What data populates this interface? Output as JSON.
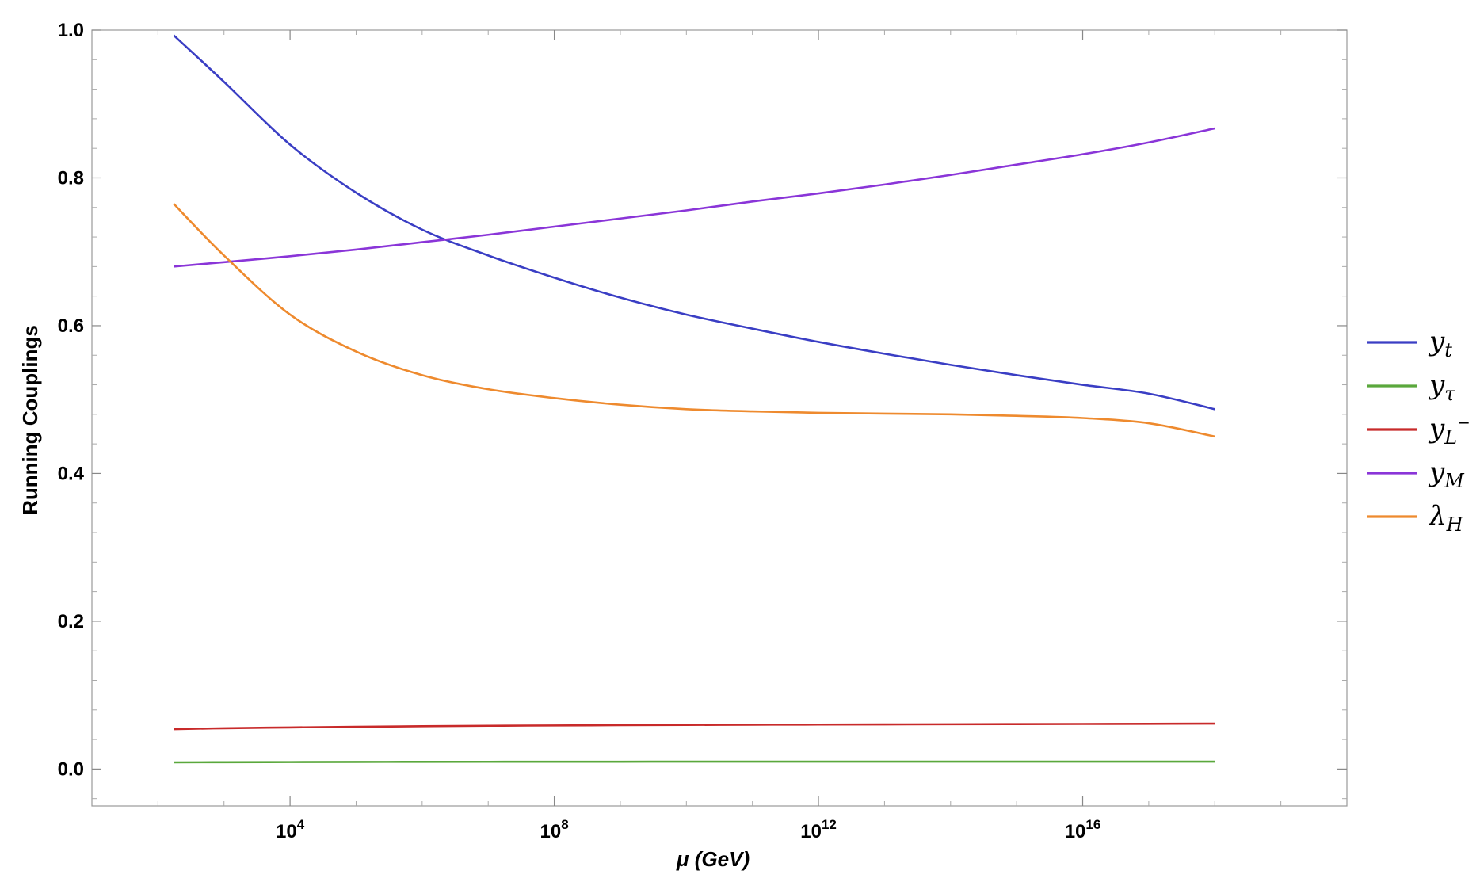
{
  "chart_data": {
    "type": "line",
    "xlabel": "μ (GeV)",
    "ylabel": "Running Couplings",
    "x_scale": "log10",
    "xlim": [
      10,
      1e+20
    ],
    "ylim": [
      -0.05,
      1.0
    ],
    "x_ticks": [
      {
        "value": 10000,
        "base": "10",
        "exp": "4"
      },
      {
        "value": 100000000,
        "base": "10",
        "exp": "8"
      },
      {
        "value": 1000000000000,
        "base": "10",
        "exp": "12"
      },
      {
        "value": 10000000000000000,
        "base": "10",
        "exp": "16"
      }
    ],
    "y_ticks": [
      "0.0",
      "0.2",
      "0.4",
      "0.6",
      "0.8",
      "1.0"
    ],
    "legend_position": "right",
    "x": [
      173,
      1000,
      10000,
      100000,
      1000000,
      10000000,
      100000000,
      1000000000,
      10000000000,
      100000000000,
      1000000000000,
      10000000000000,
      100000000000000,
      1000000000000000,
      10000000000000000,
      100000000000000000,
      1000000000000000000
    ],
    "series": [
      {
        "name": "y",
        "sub": "t",
        "sup": "",
        "color": "#3a3ec4",
        "values": [
          0.993,
          0.93,
          0.845,
          0.78,
          0.73,
          0.695,
          0.665,
          0.638,
          0.615,
          0.596,
          0.578,
          0.562,
          0.547,
          0.533,
          0.52,
          0.508,
          0.487
        ]
      },
      {
        "name": "y",
        "sub": "τ",
        "sup": "",
        "color": "#5aa83c",
        "values": [
          0.009,
          0.0092,
          0.0094,
          0.0096,
          0.0097,
          0.0098,
          0.0099,
          0.0099,
          0.01,
          0.01,
          0.01,
          0.01,
          0.01,
          0.01,
          0.01,
          0.01,
          0.01
        ]
      },
      {
        "name": "y",
        "sub": "L",
        "sup": "−",
        "color": "#c82a2a",
        "values": [
          0.054,
          0.0552,
          0.0563,
          0.0572,
          0.058,
          0.0586,
          0.059,
          0.0594,
          0.0597,
          0.06,
          0.0602,
          0.0604,
          0.0606,
          0.0608,
          0.061,
          0.0612,
          0.0615
        ]
      },
      {
        "name": "y",
        "sub": "M",
        "sup": "",
        "color": "#8a35d8",
        "values": [
          0.68,
          0.686,
          0.694,
          0.703,
          0.713,
          0.723,
          0.734,
          0.745,
          0.756,
          0.768,
          0.779,
          0.791,
          0.804,
          0.818,
          0.832,
          0.848,
          0.867
        ]
      },
      {
        "name": "λ",
        "sub": "H",
        "sup": "",
        "color": "#ee8a2e",
        "values": [
          0.765,
          0.695,
          0.615,
          0.565,
          0.533,
          0.514,
          0.502,
          0.493,
          0.487,
          0.484,
          0.482,
          0.481,
          0.48,
          0.478,
          0.475,
          0.468,
          0.45
        ]
      }
    ]
  }
}
